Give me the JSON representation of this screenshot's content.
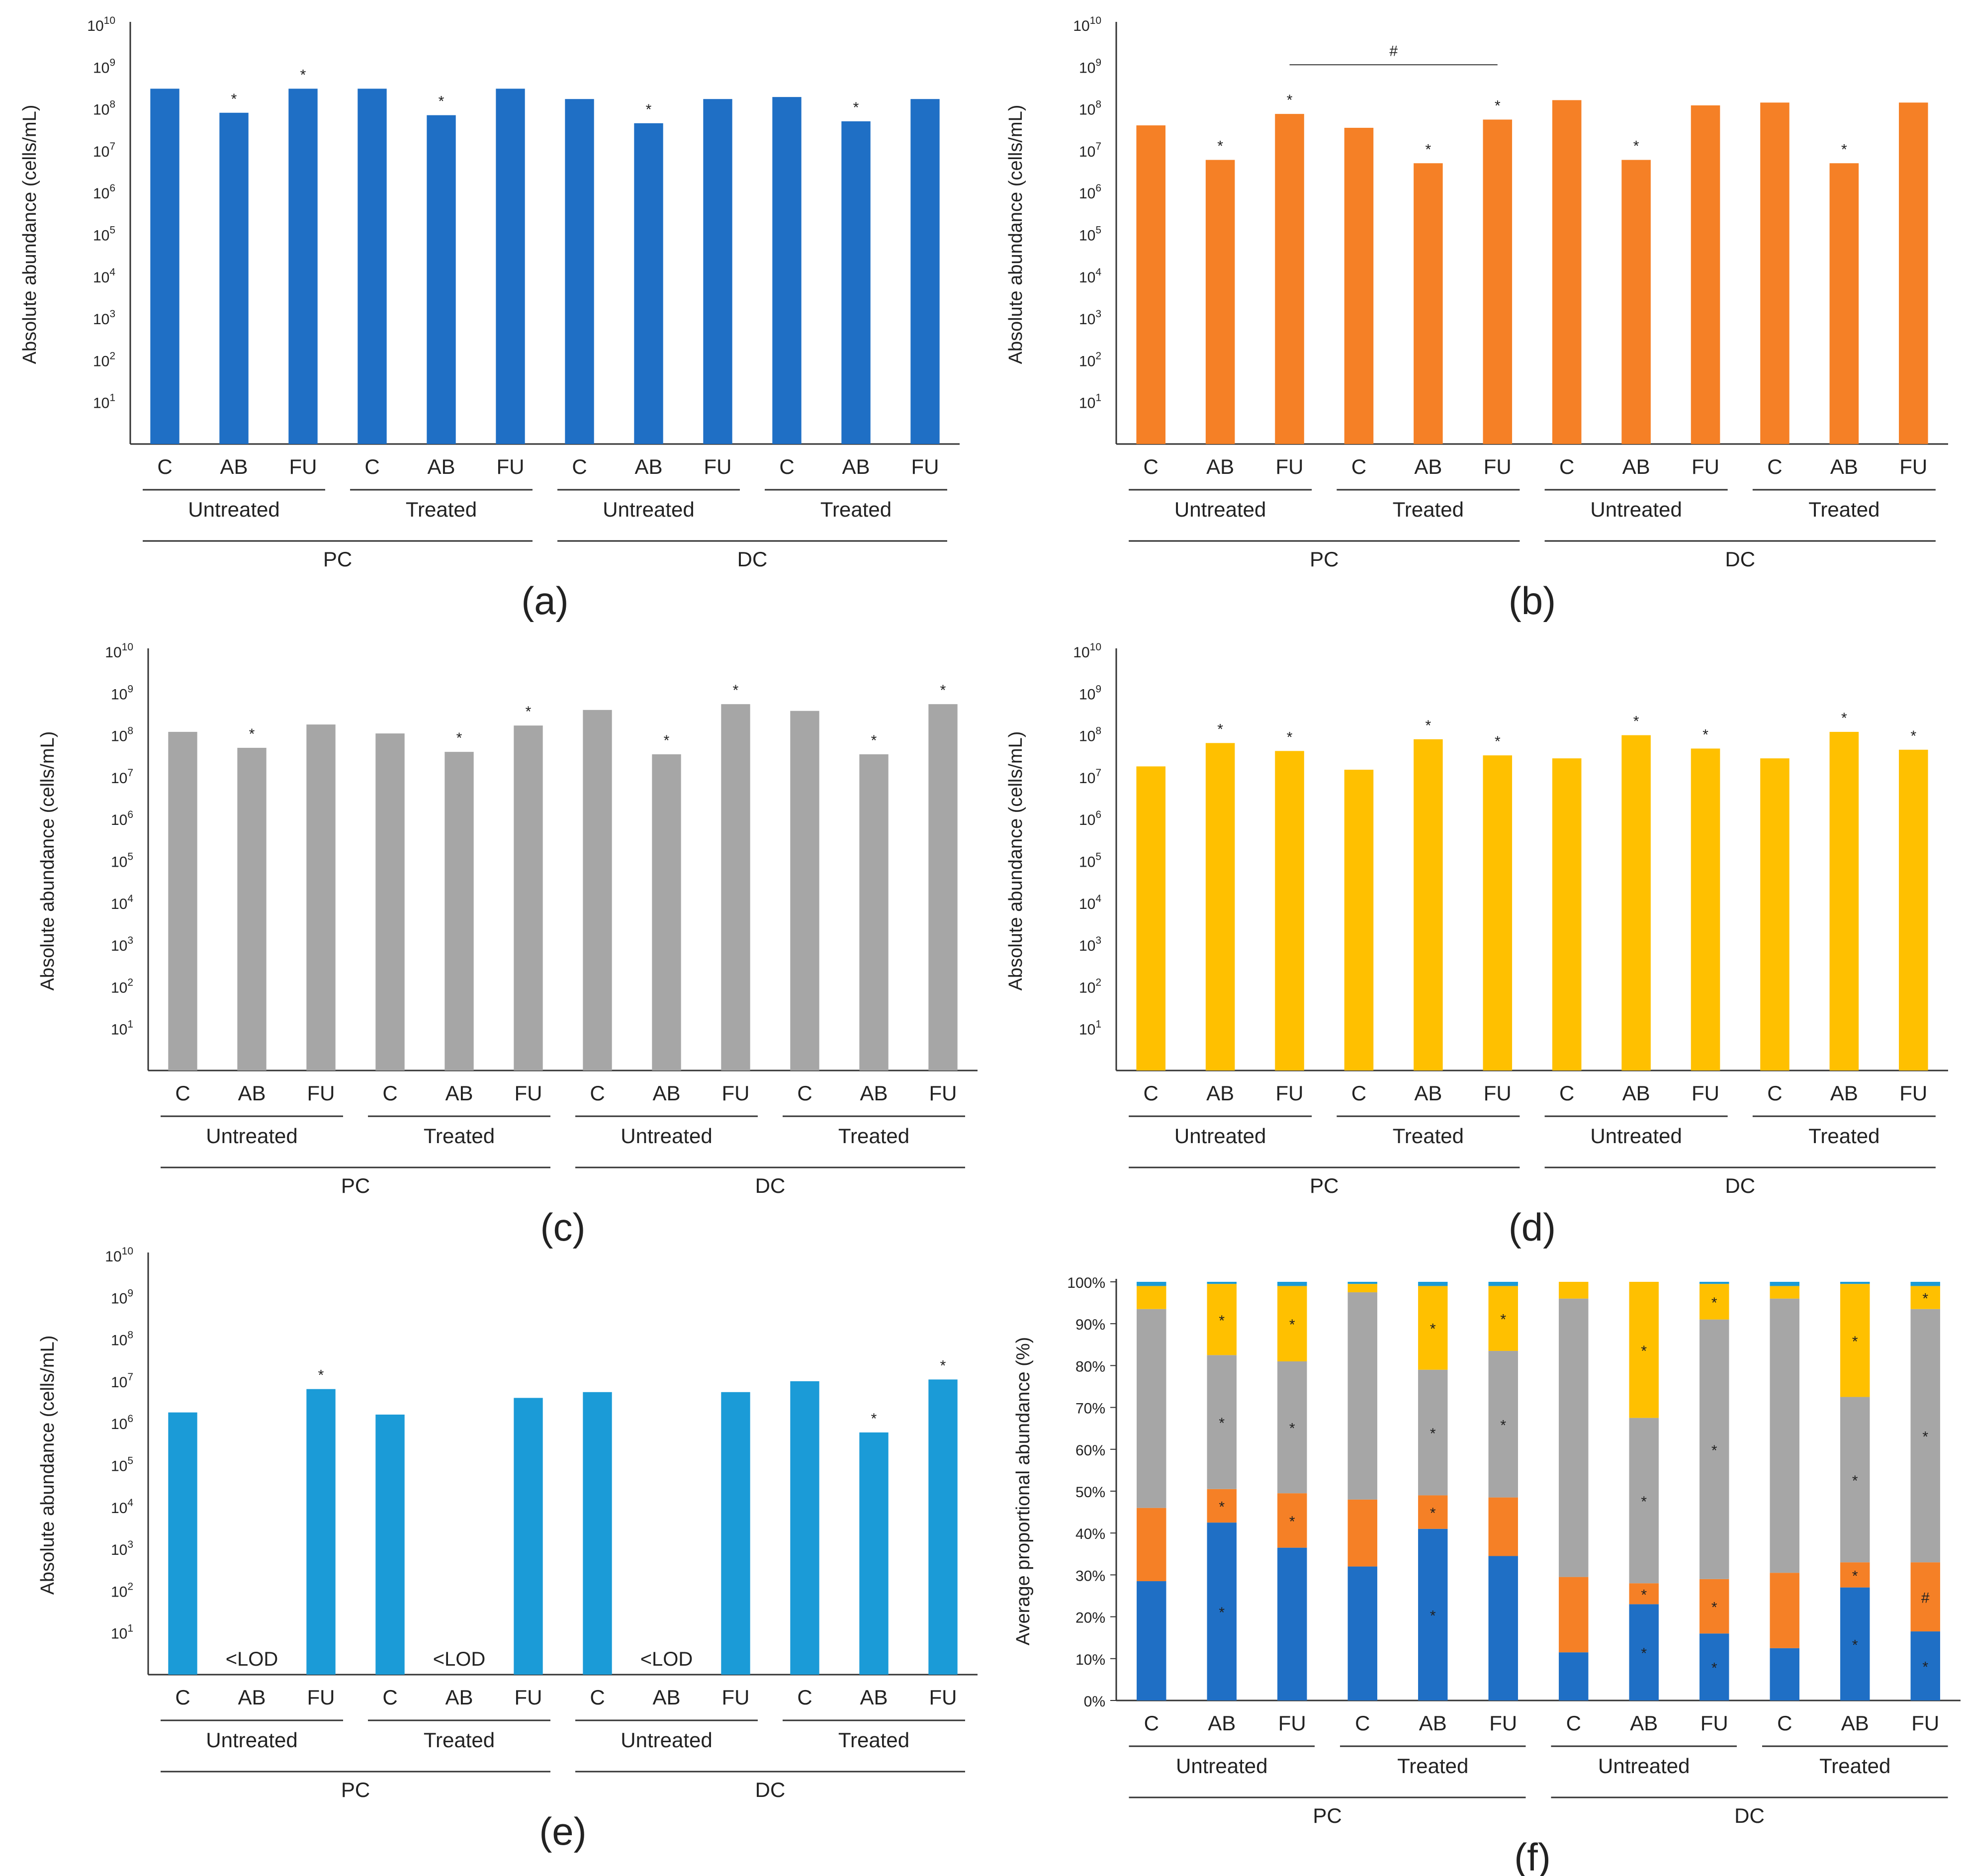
{
  "chart_data": [
    {
      "panel": "(a)",
      "type": "bar",
      "scale": "log",
      "ylabel": "Absolute abundance (cells/mL)",
      "color": "#1F6FC5",
      "ylim": [
        1,
        10000000000
      ],
      "yticks": [
        {
          "base": "10",
          "exp": "1",
          "value": 10
        },
        {
          "base": "10",
          "exp": "2",
          "value": 100
        },
        {
          "base": "10",
          "exp": "3",
          "value": 1000
        },
        {
          "base": "10",
          "exp": "4",
          "value": 10000
        },
        {
          "base": "10",
          "exp": "5",
          "value": 100000
        },
        {
          "base": "10",
          "exp": "6",
          "value": 1000000
        },
        {
          "base": "10",
          "exp": "7",
          "value": 10000000
        },
        {
          "base": "10",
          "exp": "8",
          "value": 100000000
        },
        {
          "base": "10",
          "exp": "9",
          "value": 1000000000
        },
        {
          "base": "10",
          "exp": "10",
          "value": 10000000000
        }
      ],
      "categories": [
        "C",
        "AB",
        "FU",
        "C",
        "AB",
        "FU",
        "C",
        "AB",
        "FU",
        "C",
        "AB",
        "FU"
      ],
      "treatments": [
        "Untreated",
        "Treated",
        "Untreated",
        "Treated"
      ],
      "sections": [
        "PC",
        "DC"
      ],
      "values": [
        300000000,
        80000000,
        300000000,
        300000000,
        70000000,
        300000000,
        170000000,
        45000000,
        170000000,
        190000000,
        50000000,
        170000000
      ],
      "marks": [
        "",
        "*",
        "*",
        "",
        "*",
        "",
        "",
        "*",
        "",
        "",
        "*",
        ""
      ],
      "bracket": null
    },
    {
      "panel": "(b)",
      "type": "bar",
      "scale": "log",
      "ylabel": "Absolute abundance (cells/mL)",
      "color": "#F58026",
      "ylim": [
        1,
        10000000000
      ],
      "yticks": [
        {
          "base": "10",
          "exp": "1",
          "value": 10
        },
        {
          "base": "10",
          "exp": "2",
          "value": 100
        },
        {
          "base": "10",
          "exp": "3",
          "value": 1000
        },
        {
          "base": "10",
          "exp": "4",
          "value": 10000
        },
        {
          "base": "10",
          "exp": "5",
          "value": 100000
        },
        {
          "base": "10",
          "exp": "6",
          "value": 1000000
        },
        {
          "base": "10",
          "exp": "7",
          "value": 10000000
        },
        {
          "base": "10",
          "exp": "8",
          "value": 100000000
        },
        {
          "base": "10",
          "exp": "9",
          "value": 1000000000
        },
        {
          "base": "10",
          "exp": "10",
          "value": 10000000000
        }
      ],
      "categories": [
        "C",
        "AB",
        "FU",
        "C",
        "AB",
        "FU",
        "C",
        "AB",
        "FU",
        "C",
        "AB",
        "FU"
      ],
      "treatments": [
        "Untreated",
        "Treated",
        "Untreated",
        "Treated"
      ],
      "sections": [
        "PC",
        "DC"
      ],
      "values": [
        40000000,
        6000000,
        75000000,
        35000000,
        5000000,
        55000000,
        160000000,
        6000000,
        120000000,
        140000000,
        5000000,
        140000000
      ],
      "marks": [
        "",
        "*",
        "*",
        "",
        "*",
        "*",
        "",
        "*",
        "",
        "",
        "*",
        ""
      ],
      "bracket": {
        "from": 2,
        "to": 5,
        "label": "#"
      }
    },
    {
      "panel": "(c)",
      "type": "bar",
      "scale": "log",
      "ylabel": "Absolute abundance (cells/mL)",
      "color": "#A6A6A6",
      "ylim": [
        1,
        10000000000
      ],
      "yticks": [
        {
          "base": "10",
          "exp": "1",
          "value": 10
        },
        {
          "base": "10",
          "exp": "2",
          "value": 100
        },
        {
          "base": "10",
          "exp": "3",
          "value": 1000
        },
        {
          "base": "10",
          "exp": "4",
          "value": 10000
        },
        {
          "base": "10",
          "exp": "5",
          "value": 100000
        },
        {
          "base": "10",
          "exp": "6",
          "value": 1000000
        },
        {
          "base": "10",
          "exp": "7",
          "value": 10000000
        },
        {
          "base": "10",
          "exp": "8",
          "value": 100000000
        },
        {
          "base": "10",
          "exp": "9",
          "value": 1000000000
        },
        {
          "base": "10",
          "exp": "10",
          "value": 10000000000
        }
      ],
      "categories": [
        "C",
        "AB",
        "FU",
        "C",
        "AB",
        "FU",
        "C",
        "AB",
        "FU",
        "C",
        "AB",
        "FU"
      ],
      "treatments": [
        "Untreated",
        "Treated",
        "Untreated",
        "Treated"
      ],
      "sections": [
        "PC",
        "DC"
      ],
      "values": [
        120000000,
        50000000,
        180000000,
        110000000,
        40000000,
        170000000,
        400000000,
        35000000,
        550000000,
        380000000,
        35000000,
        550000000
      ],
      "marks": [
        "",
        "*",
        "",
        "",
        "*",
        "*",
        "",
        "*",
        "*",
        "",
        "*",
        "*"
      ],
      "bracket": null
    },
    {
      "panel": "(d)",
      "type": "bar",
      "scale": "log",
      "ylabel": "Absolute abundance (cells/mL)",
      "color": "#FFC000",
      "ylim": [
        1,
        10000000000
      ],
      "yticks": [
        {
          "base": "10",
          "exp": "1",
          "value": 10
        },
        {
          "base": "10",
          "exp": "2",
          "value": 100
        },
        {
          "base": "10",
          "exp": "3",
          "value": 1000
        },
        {
          "base": "10",
          "exp": "4",
          "value": 10000
        },
        {
          "base": "10",
          "exp": "5",
          "value": 100000
        },
        {
          "base": "10",
          "exp": "6",
          "value": 1000000
        },
        {
          "base": "10",
          "exp": "7",
          "value": 10000000
        },
        {
          "base": "10",
          "exp": "8",
          "value": 100000000
        },
        {
          "base": "10",
          "exp": "9",
          "value": 1000000000
        },
        {
          "base": "10",
          "exp": "10",
          "value": 10000000000
        }
      ],
      "categories": [
        "C",
        "AB",
        "FU",
        "C",
        "AB",
        "FU",
        "C",
        "AB",
        "FU",
        "C",
        "AB",
        "FU"
      ],
      "treatments": [
        "Untreated",
        "Treated",
        "Untreated",
        "Treated"
      ],
      "sections": [
        "PC",
        "DC"
      ],
      "values": [
        18000000,
        65000000,
        42000000,
        15000000,
        80000000,
        33000000,
        28000000,
        100000000,
        48000000,
        28000000,
        120000000,
        45000000
      ],
      "marks": [
        "",
        "*",
        "*",
        "",
        "*",
        "*",
        "",
        "*",
        "*",
        "",
        "*",
        "*"
      ],
      "bracket": null
    },
    {
      "panel": "(e)",
      "type": "bar",
      "scale": "log",
      "ylabel": "Absolute abundance (cells/mL)",
      "color": "#1B9BD7",
      "ylim": [
        1,
        10000000000
      ],
      "yticks": [
        {
          "base": "10",
          "exp": "1",
          "value": 10
        },
        {
          "base": "10",
          "exp": "2",
          "value": 100
        },
        {
          "base": "10",
          "exp": "3",
          "value": 1000
        },
        {
          "base": "10",
          "exp": "4",
          "value": 10000
        },
        {
          "base": "10",
          "exp": "5",
          "value": 100000
        },
        {
          "base": "10",
          "exp": "6",
          "value": 1000000
        },
        {
          "base": "10",
          "exp": "7",
          "value": 10000000
        },
        {
          "base": "10",
          "exp": "8",
          "value": 100000000
        },
        {
          "base": "10",
          "exp": "9",
          "value": 1000000000
        },
        {
          "base": "10",
          "exp": "10",
          "value": 10000000000
        }
      ],
      "categories": [
        "C",
        "AB",
        "FU",
        "C",
        "AB",
        "FU",
        "C",
        "AB",
        "FU",
        "C",
        "AB",
        "FU"
      ],
      "treatments": [
        "Untreated",
        "Treated",
        "Untreated",
        "Treated"
      ],
      "sections": [
        "PC",
        "DC"
      ],
      "values": [
        1800000,
        null,
        6500000,
        1600000,
        null,
        4000000,
        5500000,
        null,
        5500000,
        10000000,
        600000,
        11000000
      ],
      "value_labels": [
        "",
        "<LOD",
        "",
        "",
        "<LOD",
        "",
        "",
        "<LOD",
        "",
        "",
        "",
        ""
      ],
      "marks": [
        "",
        "",
        "*",
        "",
        "",
        "",
        "",
        "",
        "",
        "",
        "*",
        "*"
      ],
      "bracket": null
    },
    {
      "panel": "(f)",
      "type": "stacked-bar",
      "ylabel": "Average proportional abundance (%)",
      "ylim": [
        0,
        100
      ],
      "yticks": [
        "0%",
        "10%",
        "20%",
        "30%",
        "40%",
        "50%",
        "60%",
        "70%",
        "80%",
        "90%",
        "100%"
      ],
      "categories": [
        "C",
        "AB",
        "FU",
        "C",
        "AB",
        "FU",
        "C",
        "AB",
        "FU",
        "C",
        "AB",
        "FU"
      ],
      "treatments": [
        "Untreated",
        "Treated",
        "Untreated",
        "Treated"
      ],
      "sections": [
        "PC",
        "DC"
      ],
      "series": [
        {
          "color": "#1F6FC5",
          "values": [
            28.5,
            42.5,
            36.5,
            32,
            41,
            34.5,
            11.5,
            23,
            16,
            12.5,
            27,
            16.5
          ],
          "marks": [
            "",
            "*",
            "",
            "",
            "*",
            "",
            "",
            "*",
            "*",
            "",
            "*",
            "*"
          ]
        },
        {
          "color": "#F58026",
          "values": [
            17.5,
            8,
            13,
            16,
            8,
            14,
            18,
            5,
            13,
            18,
            6,
            16.5
          ],
          "marks": [
            "",
            "*",
            "*",
            "",
            "*",
            "",
            "",
            "*",
            "*",
            "",
            "*",
            "#"
          ]
        },
        {
          "color": "#A6A6A6",
          "values": [
            47.5,
            32,
            31.5,
            49.5,
            30,
            35,
            66.5,
            39.5,
            62,
            65.5,
            39.5,
            60.5
          ],
          "marks": [
            "",
            "*",
            "*",
            "",
            "*",
            "*",
            "",
            "*",
            "*",
            "",
            "*",
            "*"
          ]
        },
        {
          "color": "#FFC000",
          "values": [
            5.5,
            17,
            18,
            2,
            20,
            15.5,
            4,
            32.5,
            8.5,
            3,
            27,
            5.5
          ],
          "marks": [
            "",
            "*",
            "*",
            "",
            "*",
            "*",
            "",
            "*",
            "*",
            "",
            "*",
            "*"
          ]
        },
        {
          "color": "#1B9BD7",
          "values": [
            1,
            0.5,
            1,
            0.5,
            1,
            1,
            0,
            0,
            0.5,
            1,
            0.5,
            1
          ],
          "marks": [
            "",
            "",
            "",
            "",
            "",
            "",
            "",
            "",
            "",
            "",
            "",
            ""
          ]
        }
      ]
    }
  ]
}
